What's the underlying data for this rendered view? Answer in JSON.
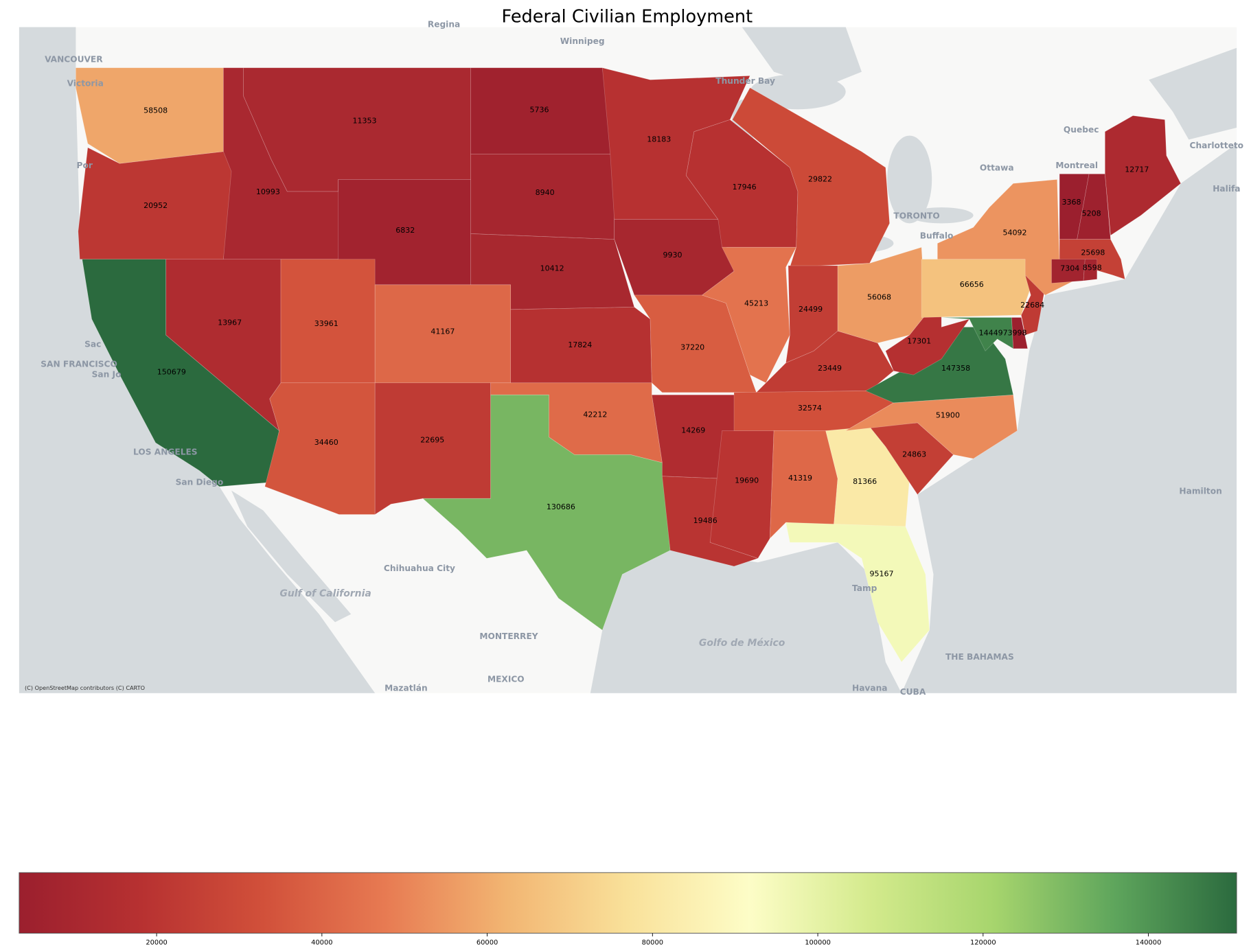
{
  "chart_data": {
    "type": "choropleth",
    "title": "Federal Civilian Employment",
    "colormap": "RdYlGn",
    "color_range": [
      3368,
      150679
    ],
    "colorbar": {
      "orientation": "horizontal",
      "placement": "bottom",
      "ticks": [
        20000,
        40000,
        60000,
        80000,
        100000,
        120000,
        140000
      ],
      "tick_labels": [
        "20000",
        "40000",
        "60000",
        "80000",
        "100000",
        "120000",
        "140000"
      ]
    },
    "values": [
      58508,
      20952,
      150679,
      10993,
      11353,
      6832,
      5736,
      8940,
      10412,
      13967,
      33961,
      41167,
      34460,
      22695,
      17824,
      42212,
      130686,
      18183,
      9930,
      37220,
      14269,
      19486,
      17946,
      45213,
      29822,
      24499,
      56068,
      23449,
      32574,
      19690,
      41319,
      81366,
      95167,
      24863,
      51900,
      147358,
      17301,
      144497,
      3998,
      66656,
      22684,
      54092,
      3368,
      5208,
      12717,
      25698,
      7304,
      8598
    ]
  },
  "basemap": {
    "attribution": "(C) OpenStreetMap contributors (C) CARTO",
    "place_labels": [
      "VANCOUVER",
      "Victoria",
      "Regina",
      "Winnipeg",
      "Thunder Bay",
      "Quebec",
      "Montreal",
      "Ottawa",
      "TORONTO",
      "Buffalo",
      "Charlotteto",
      "Halifa",
      "Hamilton",
      "Por",
      "Sac",
      "SAN FRANCISCO",
      "San Jo",
      "LOS ANGELES",
      "San Diego",
      "Chihuahua City",
      "MONTERREY",
      "MEXICO",
      "Mazatlán",
      "Havana",
      "CUBA",
      "THE BAHAMAS",
      "Tamp"
    ],
    "water_labels": [
      "Gulf of California",
      "Golfo de México"
    ],
    "colors": {
      "land": "#f8f8f7",
      "water": "#d5dadd",
      "label": "#8d97a5"
    }
  }
}
